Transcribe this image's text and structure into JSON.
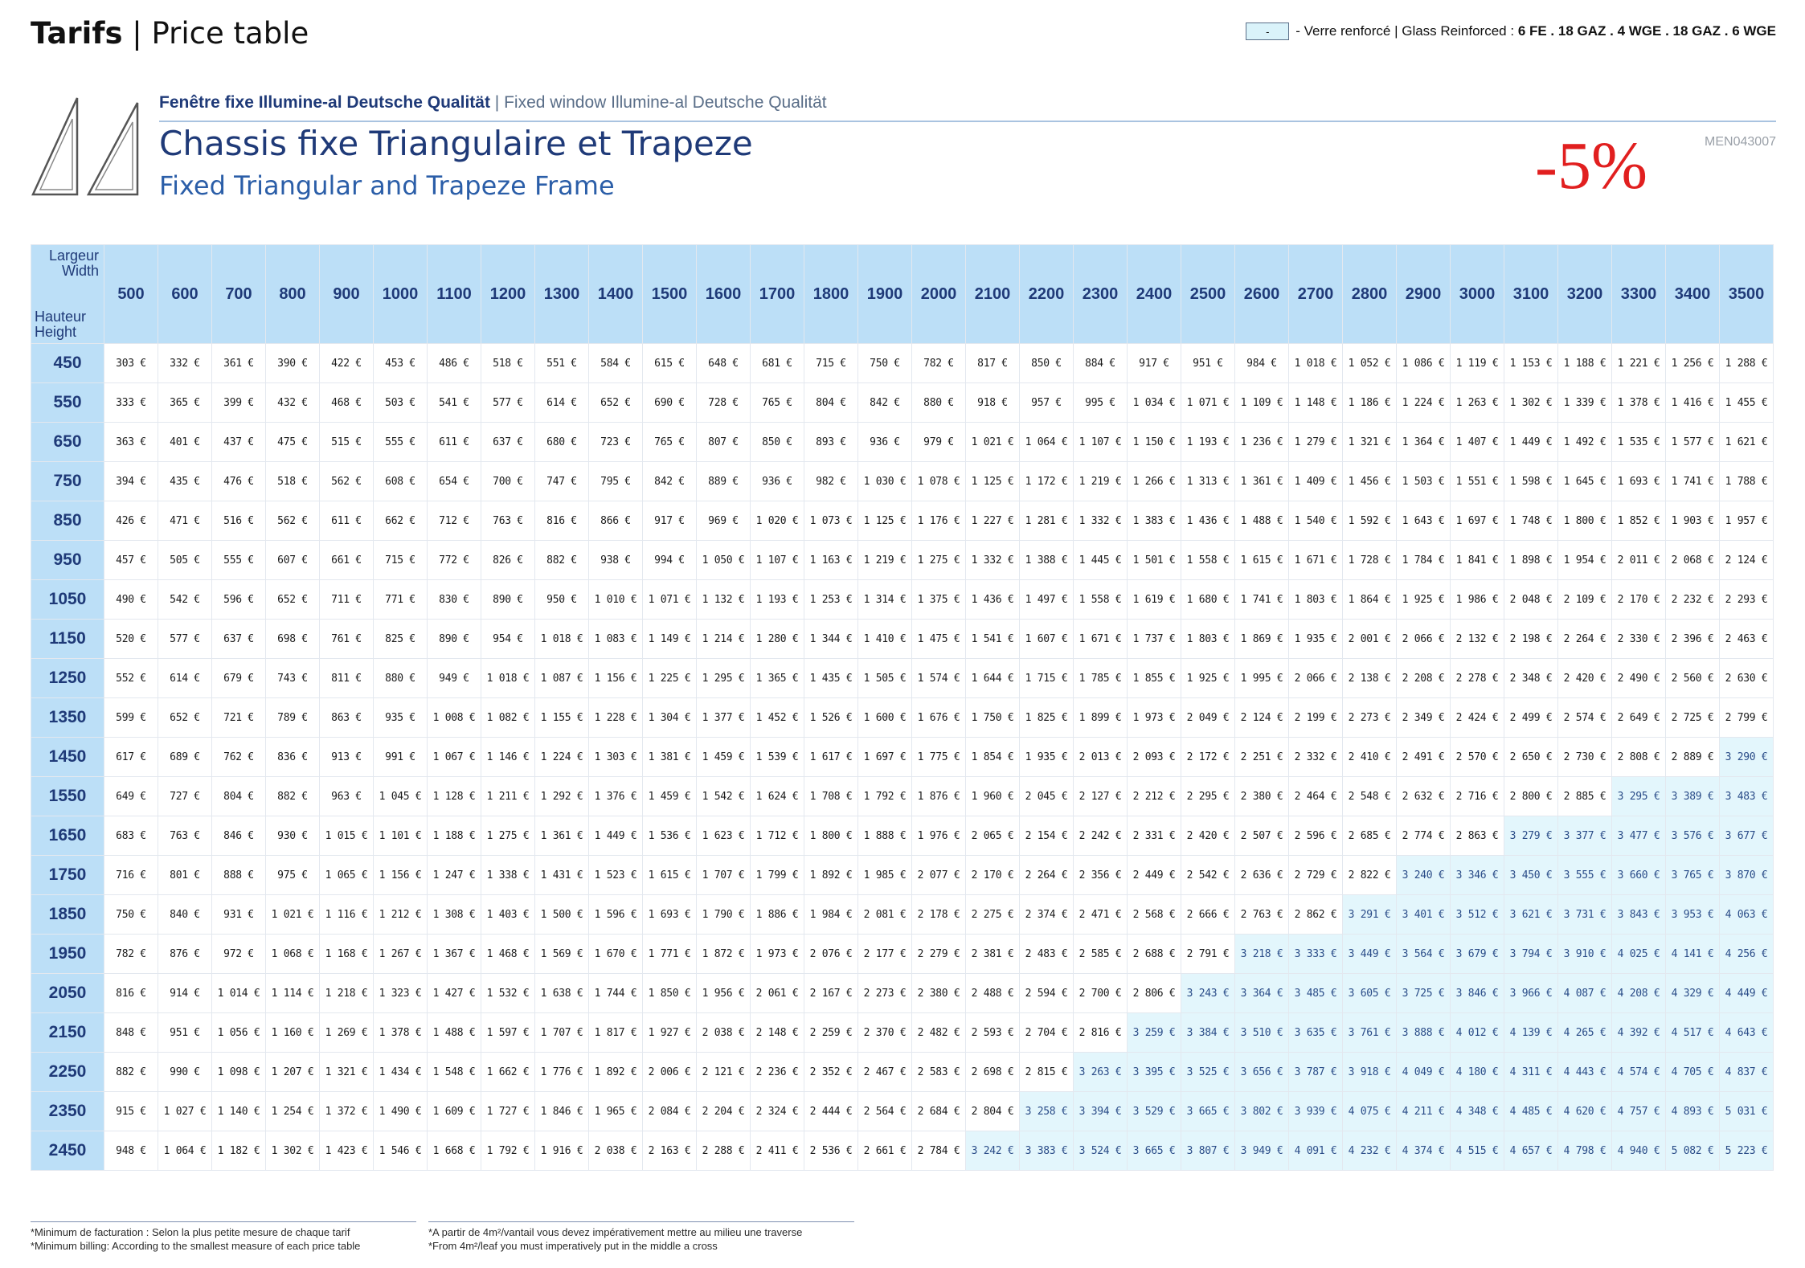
{
  "header": {
    "title_bold": "Tarifs",
    "title_rest": "| Price table"
  },
  "legend": {
    "swatch_text": "-",
    "text": "- Verre renforcé | Glass Reinforced :",
    "bold": "6 FE . 18 GAZ . 4 WGE . 18 GAZ . 6 WGE",
    "swatch_color": "#daf3fa"
  },
  "product": {
    "line_fr": "Fenêtre fixe Illumine-al Deutsche Qualität",
    "line_en": "| Fixed window Illumine-al Deutsche Qualität",
    "title_fr": "Chassis fixe Triangulaire et Trapeze",
    "title_en": "Fixed Triangular and Trapeze Frame",
    "discount": "-5%",
    "ref": "MEN043007"
  },
  "corner": {
    "largeur": "Largeur",
    "width": "Width",
    "hauteur": "Hauteur",
    "height": "Height"
  },
  "widths": [
    "500",
    "600",
    "700",
    "800",
    "900",
    "1000",
    "1100",
    "1200",
    "1300",
    "1400",
    "1500",
    "1600",
    "1700",
    "1800",
    "1900",
    "2000",
    "2100",
    "2200",
    "2300",
    "2400",
    "2500",
    "2600",
    "2700",
    "2800",
    "2900",
    "3000",
    "3100",
    "3200",
    "3300",
    "3400",
    "3500"
  ],
  "heights": [
    "450",
    "550",
    "650",
    "750",
    "850",
    "950",
    "1050",
    "1150",
    "1250",
    "1350",
    "1450",
    "1550",
    "1650",
    "1750",
    "1850",
    "1950",
    "2050",
    "2150",
    "2250",
    "2350",
    "2450"
  ],
  "glass_start_index": [
    null,
    null,
    null,
    null,
    null,
    null,
    null,
    null,
    null,
    null,
    30,
    28,
    26,
    24,
    23,
    21,
    20,
    19,
    18,
    17,
    16
  ],
  "rows": [
    [
      "303 €",
      "332 €",
      "361 €",
      "390 €",
      "422 €",
      "453 €",
      "486 €",
      "518 €",
      "551 €",
      "584 €",
      "615 €",
      "648 €",
      "681 €",
      "715 €",
      "750 €",
      "782 €",
      "817 €",
      "850 €",
      "884 €",
      "917 €",
      "951 €",
      "984 €",
      "1 018 €",
      "1 052 €",
      "1 086 €",
      "1 119 €",
      "1 153 €",
      "1 188 €",
      "1 221 €",
      "1 256 €",
      "1 288 €"
    ],
    [
      "333 €",
      "365 €",
      "399 €",
      "432 €",
      "468 €",
      "503 €",
      "541 €",
      "577 €",
      "614 €",
      "652 €",
      "690 €",
      "728 €",
      "765 €",
      "804 €",
      "842 €",
      "880 €",
      "918 €",
      "957 €",
      "995 €",
      "1 034 €",
      "1 071 €",
      "1 109 €",
      "1 148 €",
      "1 186 €",
      "1 224 €",
      "1 263 €",
      "1 302 €",
      "1 339 €",
      "1 378 €",
      "1 416 €",
      "1 455 €"
    ],
    [
      "363 €",
      "401 €",
      "437 €",
      "475 €",
      "515 €",
      "555 €",
      "611 €",
      "637 €",
      "680 €",
      "723 €",
      "765 €",
      "807 €",
      "850 €",
      "893 €",
      "936 €",
      "979 €",
      "1 021 €",
      "1 064 €",
      "1 107 €",
      "1 150 €",
      "1 193 €",
      "1 236 €",
      "1 279 €",
      "1 321 €",
      "1 364 €",
      "1 407 €",
      "1 449 €",
      "1 492 €",
      "1 535 €",
      "1 577 €",
      "1 621 €"
    ],
    [
      "394 €",
      "435 €",
      "476 €",
      "518 €",
      "562 €",
      "608 €",
      "654 €",
      "700 €",
      "747 €",
      "795 €",
      "842 €",
      "889 €",
      "936 €",
      "982 €",
      "1 030 €",
      "1 078 €",
      "1 125 €",
      "1 172 €",
      "1 219 €",
      "1 266 €",
      "1 313 €",
      "1 361 €",
      "1 409 €",
      "1 456 €",
      "1 503 €",
      "1 551 €",
      "1 598 €",
      "1 645 €",
      "1 693 €",
      "1 741 €",
      "1 788 €"
    ],
    [
      "426 €",
      "471 €",
      "516 €",
      "562 €",
      "611 €",
      "662 €",
      "712 €",
      "763 €",
      "816 €",
      "866 €",
      "917 €",
      "969 €",
      "1 020 €",
      "1 073 €",
      "1 125 €",
      "1 176 €",
      "1 227 €",
      "1 281 €",
      "1 332 €",
      "1 383 €",
      "1 436 €",
      "1 488 €",
      "1 540 €",
      "1 592 €",
      "1 643 €",
      "1 697 €",
      "1 748 €",
      "1 800 €",
      "1 852 €",
      "1 903 €",
      "1 957 €"
    ],
    [
      "457 €",
      "505 €",
      "555 €",
      "607 €",
      "661 €",
      "715 €",
      "772 €",
      "826 €",
      "882 €",
      "938 €",
      "994 €",
      "1 050 €",
      "1 107 €",
      "1 163 €",
      "1 219 €",
      "1 275 €",
      "1 332 €",
      "1 388 €",
      "1 445 €",
      "1 501 €",
      "1 558 €",
      "1 615 €",
      "1 671 €",
      "1 728 €",
      "1 784 €",
      "1 841 €",
      "1 898 €",
      "1 954 €",
      "2 011 €",
      "2 068 €",
      "2 124 €"
    ],
    [
      "490 €",
      "542 €",
      "596 €",
      "652 €",
      "711 €",
      "771 €",
      "830 €",
      "890 €",
      "950 €",
      "1 010 €",
      "1 071 €",
      "1 132 €",
      "1 193 €",
      "1 253 €",
      "1 314 €",
      "1 375 €",
      "1 436 €",
      "1 497 €",
      "1 558 €",
      "1 619 €",
      "1 680 €",
      "1 741 €",
      "1 803 €",
      "1 864 €",
      "1 925 €",
      "1 986 €",
      "2 048 €",
      "2 109 €",
      "2 170 €",
      "2 232 €",
      "2 293 €"
    ],
    [
      "520 €",
      "577 €",
      "637 €",
      "698 €",
      "761 €",
      "825 €",
      "890 €",
      "954 €",
      "1 018 €",
      "1 083 €",
      "1 149 €",
      "1 214 €",
      "1 280 €",
      "1 344 €",
      "1 410 €",
      "1 475 €",
      "1 541 €",
      "1 607 €",
      "1 671 €",
      "1 737 €",
      "1 803 €",
      "1 869 €",
      "1 935 €",
      "2 001 €",
      "2 066 €",
      "2 132 €",
      "2 198 €",
      "2 264 €",
      "2 330 €",
      "2 396 €",
      "2 463 €"
    ],
    [
      "552 €",
      "614 €",
      "679 €",
      "743 €",
      "811 €",
      "880 €",
      "949 €",
      "1 018 €",
      "1 087 €",
      "1 156 €",
      "1 225 €",
      "1 295 €",
      "1 365 €",
      "1 435 €",
      "1 505 €",
      "1 574 €",
      "1 644 €",
      "1 715 €",
      "1 785 €",
      "1 855 €",
      "1 925 €",
      "1 995 €",
      "2 066 €",
      "2 138 €",
      "2 208 €",
      "2 278 €",
      "2 348 €",
      "2 420 €",
      "2 490 €",
      "2 560 €",
      "2 630 €"
    ],
    [
      "599 €",
      "652 €",
      "721 €",
      "789 €",
      "863 €",
      "935 €",
      "1 008 €",
      "1 082 €",
      "1 155 €",
      "1 228 €",
      "1 304 €",
      "1 377 €",
      "1 452 €",
      "1 526 €",
      "1 600 €",
      "1 676 €",
      "1 750 €",
      "1 825 €",
      "1 899 €",
      "1 973 €",
      "2 049 €",
      "2 124 €",
      "2 199 €",
      "2 273 €",
      "2 349 €",
      "2 424 €",
      "2 499 €",
      "2 574 €",
      "2 649 €",
      "2 725 €",
      "2 799 €"
    ],
    [
      "617 €",
      "689 €",
      "762 €",
      "836 €",
      "913 €",
      "991 €",
      "1 067 €",
      "1 146 €",
      "1 224 €",
      "1 303 €",
      "1 381 €",
      "1 459 €",
      "1 539 €",
      "1 617 €",
      "1 697 €",
      "1 775 €",
      "1 854 €",
      "1 935 €",
      "2 013 €",
      "2 093 €",
      "2 172 €",
      "2 251 €",
      "2 332 €",
      "2 410 €",
      "2 491 €",
      "2 570 €",
      "2 650 €",
      "2 730 €",
      "2 808 €",
      "2 889 €",
      "3 290 €"
    ],
    [
      "649 €",
      "727 €",
      "804 €",
      "882 €",
      "963 €",
      "1 045 €",
      "1 128 €",
      "1 211 €",
      "1 292 €",
      "1 376 €",
      "1 459 €",
      "1 542 €",
      "1 624 €",
      "1 708 €",
      "1 792 €",
      "1 876 €",
      "1 960 €",
      "2 045 €",
      "2 127 €",
      "2 212 €",
      "2 295 €",
      "2 380 €",
      "2 464 €",
      "2 548 €",
      "2 632 €",
      "2 716 €",
      "2 800 €",
      "2 885 €",
      "3 295 €",
      "3 389 €",
      "3 483 €"
    ],
    [
      "683 €",
      "763 €",
      "846 €",
      "930 €",
      "1 015 €",
      "1 101 €",
      "1 188 €",
      "1 275 €",
      "1 361 €",
      "1 449 €",
      "1 536 €",
      "1 623 €",
      "1 712 €",
      "1 800 €",
      "1 888 €",
      "1 976 €",
      "2 065 €",
      "2 154 €",
      "2 242 €",
      "2 331 €",
      "2 420 €",
      "2 507 €",
      "2 596 €",
      "2 685 €",
      "2 774 €",
      "2 863 €",
      "3 279 €",
      "3 377 €",
      "3 477 €",
      "3 576 €",
      "3 677 €"
    ],
    [
      "716 €",
      "801 €",
      "888 €",
      "975 €",
      "1 065 €",
      "1 156 €",
      "1 247 €",
      "1 338 €",
      "1 431 €",
      "1 523 €",
      "1 615 €",
      "1 707 €",
      "1 799 €",
      "1 892 €",
      "1 985 €",
      "2 077 €",
      "2 170 €",
      "2 264 €",
      "2 356 €",
      "2 449 €",
      "2 542 €",
      "2 636 €",
      "2 729 €",
      "2 822 €",
      "3 240 €",
      "3 346 €",
      "3 450 €",
      "3 555 €",
      "3 660 €",
      "3 765 €",
      "3 870 €"
    ],
    [
      "750 €",
      "840 €",
      "931 €",
      "1 021 €",
      "1 116 €",
      "1 212 €",
      "1 308 €",
      "1 403 €",
      "1 500 €",
      "1 596 €",
      "1 693 €",
      "1 790 €",
      "1 886 €",
      "1 984 €",
      "2 081 €",
      "2 178 €",
      "2 275 €",
      "2 374 €",
      "2 471 €",
      "2 568 €",
      "2 666 €",
      "2 763 €",
      "2 862 €",
      "3 291 €",
      "3 401 €",
      "3 512 €",
      "3 621 €",
      "3 731 €",
      "3 843 €",
      "3 953 €",
      "4 063 €"
    ],
    [
      "782 €",
      "876 €",
      "972 €",
      "1 068 €",
      "1 168 €",
      "1 267 €",
      "1 367 €",
      "1 468 €",
      "1 569 €",
      "1 670 €",
      "1 771 €",
      "1 872 €",
      "1 973 €",
      "2 076 €",
      "2 177 €",
      "2 279 €",
      "2 381 €",
      "2 483 €",
      "2 585 €",
      "2 688 €",
      "2 791 €",
      "3 218 €",
      "3 333 €",
      "3 449 €",
      "3 564 €",
      "3 679 €",
      "3 794 €",
      "3 910 €",
      "4 025 €",
      "4 141 €",
      "4 256 €"
    ],
    [
      "816 €",
      "914 €",
      "1 014 €",
      "1 114 €",
      "1 218 €",
      "1 323 €",
      "1 427 €",
      "1 532 €",
      "1 638 €",
      "1 744 €",
      "1 850 €",
      "1 956 €",
      "2 061 €",
      "2 167 €",
      "2 273 €",
      "2 380 €",
      "2 488 €",
      "2 594 €",
      "2 700 €",
      "2 806 €",
      "3 243 €",
      "3 364 €",
      "3 485 €",
      "3 605 €",
      "3 725 €",
      "3 846 €",
      "3 966 €",
      "4 087 €",
      "4 208 €",
      "4 329 €",
      "4 449 €"
    ],
    [
      "848 €",
      "951 €",
      "1 056 €",
      "1 160 €",
      "1 269 €",
      "1 378 €",
      "1 488 €",
      "1 597 €",
      "1 707 €",
      "1 817 €",
      "1 927 €",
      "2 038 €",
      "2 148 €",
      "2 259 €",
      "2 370 €",
      "2 482 €",
      "2 593 €",
      "2 704 €",
      "2 816 €",
      "3 259 €",
      "3 384 €",
      "3 510 €",
      "3 635 €",
      "3 761 €",
      "3 888 €",
      "4 012 €",
      "4 139 €",
      "4 265 €",
      "4 392 €",
      "4 517 €",
      "4 643 €"
    ],
    [
      "882 €",
      "990 €",
      "1 098 €",
      "1 207 €",
      "1 321 €",
      "1 434 €",
      "1 548 €",
      "1 662 €",
      "1 776 €",
      "1 892 €",
      "2 006 €",
      "2 121 €",
      "2 236 €",
      "2 352 €",
      "2 467 €",
      "2 583 €",
      "2 698 €",
      "2 815 €",
      "3 263 €",
      "3 395 €",
      "3 525 €",
      "3 656 €",
      "3 787 €",
      "3 918 €",
      "4 049 €",
      "4 180 €",
      "4 311 €",
      "4 443 €",
      "4 574 €",
      "4 705 €",
      "4 837 €"
    ],
    [
      "915 €",
      "1 027 €",
      "1 140 €",
      "1 254 €",
      "1 372 €",
      "1 490 €",
      "1 609 €",
      "1 727 €",
      "1 846 €",
      "1 965 €",
      "2 084 €",
      "2 204 €",
      "2 324 €",
      "2 444 €",
      "2 564 €",
      "2 684 €",
      "2 804 €",
      "3 258 €",
      "3 394 €",
      "3 529 €",
      "3 665 €",
      "3 802 €",
      "3 939 €",
      "4 075 €",
      "4 211 €",
      "4 348 €",
      "4 485 €",
      "4 620 €",
      "4 757 €",
      "4 893 €",
      "5 031 €"
    ],
    [
      "948 €",
      "1 064 €",
      "1 182 €",
      "1 302 €",
      "1 423 €",
      "1 546 €",
      "1 668 €",
      "1 792 €",
      "1 916 €",
      "2 038 €",
      "2 163 €",
      "2 288 €",
      "2 411 €",
      "2 536 €",
      "2 661 €",
      "2 784 €",
      "3 242 €",
      "3 383 €",
      "3 524 €",
      "3 665 €",
      "3 807 €",
      "3 949 €",
      "4 091 €",
      "4 232 €",
      "4 374 €",
      "4 515 €",
      "4 657 €",
      "4 798 €",
      "4 940 €",
      "5 082 €",
      "5 223 €"
    ]
  ],
  "notes": {
    "left_fr": "*Minimum de facturation : Selon la plus petite mesure de chaque tarif",
    "left_en": "*Minimum billing: According to the smallest measure of each price table",
    "right_fr": "*A partir de 4m²/vantail vous devez impérativement mettre au milieu une traverse",
    "right_en": "*From 4m²/leaf you must imperatively put in the middle a cross"
  }
}
